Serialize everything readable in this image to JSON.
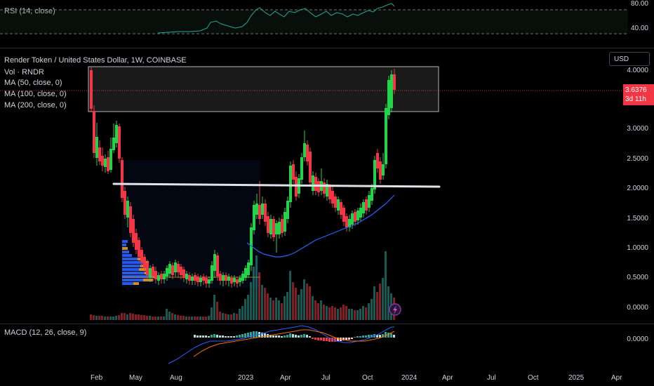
{
  "rsi_pane": {
    "label": "RSI (14, close)",
    "y_labels": [
      "80.00",
      "40.00"
    ]
  },
  "main_pane": {
    "symbol_line": "Render Token / United States Dollar, 1W, COINBASE",
    "indicators": [
      "Vol · RNDR",
      "MA (50, close, 0)",
      "MA (100, close, 0)",
      "MA (200, close, 0)"
    ],
    "currency_button": "USD",
    "y_labels": [
      "4.0000",
      "3.0000",
      "2.5000",
      "2.0000",
      "1.5000",
      "1.0000",
      "0.5000",
      "0.0000"
    ],
    "price_badge": {
      "price": "3.6376",
      "countdown": "3d 11h"
    }
  },
  "macd_pane": {
    "label": "MACD (12, 26, close, 9)",
    "y_labels": [
      "0.0000"
    ]
  },
  "x_axis": [
    "Feb",
    "May",
    "Aug",
    "2023",
    "Apr",
    "Jul",
    "Oct",
    "2024",
    "Apr",
    "Jul",
    "Oct",
    "2025",
    "Apr"
  ],
  "colors": {
    "up": "#22d44a",
    "down": "#f23645",
    "ma": "#2962ff",
    "rsi": "#26a69a",
    "macd": "#2962ff",
    "signal": "#ff6d00"
  },
  "icons": [
    "lightning-icon"
  ]
}
